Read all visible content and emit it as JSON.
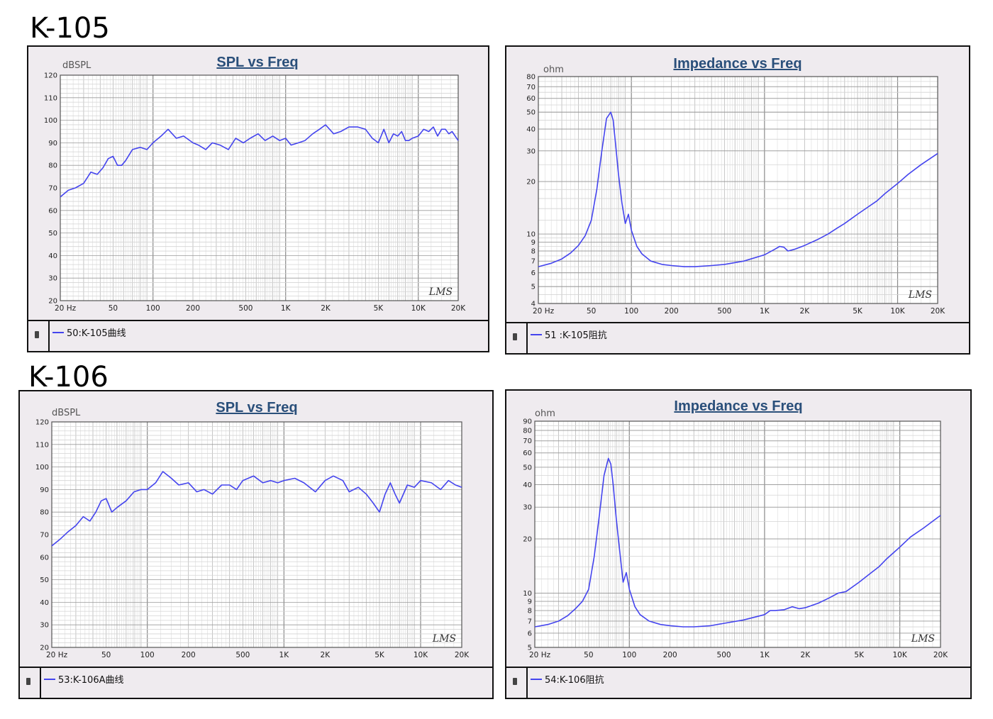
{
  "titles": [
    "K-105",
    "K-106"
  ],
  "colors": {
    "curve": "#4444ee",
    "grid": "#9a9a9a",
    "title": "#2a4f7a",
    "axis_label": "#555555",
    "tick_label": "#222222"
  },
  "chart_data": [
    {
      "type": "line",
      "title": "SPL vs Freq",
      "ylabel": "dBSPL",
      "x_scale": "log",
      "xlim": [
        20,
        20000
      ],
      "ylim": [
        20,
        120
      ],
      "y_scale": "linear",
      "x_ticks": [
        20,
        50,
        100,
        200,
        500,
        1000,
        2000,
        5000,
        10000,
        20000
      ],
      "x_tick_labels": [
        "20 Hz",
        "50",
        "100",
        "200",
        "500",
        "1K",
        "2K",
        "5K",
        "10K",
        "20K"
      ],
      "y_ticks": [
        20,
        30,
        40,
        50,
        60,
        70,
        80,
        90,
        100,
        110,
        120
      ],
      "y_tick_labels": [
        "20",
        "30",
        "40",
        "50",
        "60",
        "70",
        "80",
        "90",
        "100",
        "110",
        "120"
      ],
      "watermark": "LMS",
      "legend": "50:K-105曲线",
      "series": [
        {
          "x": [
            20,
            23,
            26,
            30,
            34,
            38,
            42,
            46,
            50,
            54,
            58,
            62,
            70,
            80,
            90,
            100,
            115,
            130,
            150,
            170,
            200,
            220,
            250,
            280,
            320,
            370,
            420,
            480,
            540,
            620,
            700,
            800,
            900,
            1000,
            1100,
            1250,
            1400,
            1600,
            1800,
            2000,
            2300,
            2600,
            3000,
            3500,
            4000,
            4500,
            5000,
            5500,
            6000,
            6500,
            7000,
            7500,
            8000,
            8500,
            9000,
            10000,
            11000,
            12000,
            13000,
            14000,
            15000,
            16000,
            17000,
            18000,
            20000
          ],
          "values": [
            66,
            69,
            70,
            72,
            77,
            76,
            79,
            83,
            84,
            80,
            80,
            82,
            87,
            88,
            87,
            90,
            93,
            96,
            92,
            93,
            90,
            89,
            87,
            90,
            89,
            87,
            92,
            90,
            92,
            94,
            91,
            93,
            91,
            92,
            89,
            90,
            91,
            94,
            96,
            98,
            94,
            95,
            97,
            97,
            96,
            92,
            90,
            96,
            90,
            94,
            93,
            95,
            91,
            91,
            92,
            93,
            96,
            95,
            97,
            93,
            96,
            96,
            94,
            95,
            91
          ]
        }
      ]
    },
    {
      "type": "line",
      "title": "Impedance vs Freq",
      "ylabel": "ohm",
      "x_scale": "log",
      "y_scale": "log",
      "xlim": [
        20,
        20000
      ],
      "ylim": [
        4,
        80
      ],
      "x_ticks": [
        20,
        50,
        100,
        200,
        500,
        1000,
        2000,
        5000,
        10000,
        20000
      ],
      "x_tick_labels": [
        "20 Hz",
        "50",
        "100",
        "200",
        "500",
        "1K",
        "2K",
        "5K",
        "10K",
        "20K"
      ],
      "y_ticks": [
        4,
        5,
        6,
        7,
        8,
        9,
        10,
        20,
        30,
        40,
        50,
        60,
        70,
        80
      ],
      "y_tick_labels": [
        "4",
        "5",
        "6",
        "7",
        "8",
        "9",
        "10",
        "20",
        "30",
        "40",
        "50",
        "60",
        "70",
        "80"
      ],
      "watermark": "LMS",
      "legend": "51 :K-105阻抗",
      "series": [
        {
          "x": [
            20,
            25,
            30,
            35,
            40,
            45,
            50,
            55,
            60,
            65,
            70,
            73,
            76,
            80,
            85,
            90,
            95,
            100,
            110,
            120,
            140,
            170,
            200,
            250,
            300,
            400,
            500,
            700,
            1000,
            1200,
            1300,
            1400,
            1500,
            1700,
            2000,
            2500,
            3000,
            3500,
            4000,
            5000,
            6000,
            7000,
            8000,
            10000,
            12000,
            15000,
            20000
          ],
          "values": [
            6.5,
            6.8,
            7.2,
            7.8,
            8.6,
            9.8,
            12,
            18,
            30,
            46,
            50,
            45,
            33,
            22,
            15,
            11.5,
            13,
            10.5,
            8.5,
            7.7,
            7.0,
            6.7,
            6.6,
            6.5,
            6.5,
            6.6,
            6.7,
            7.0,
            7.6,
            8.2,
            8.5,
            8.4,
            8.0,
            8.2,
            8.6,
            9.3,
            10.0,
            10.8,
            11.5,
            13.0,
            14.3,
            15.5,
            17.0,
            19.5,
            22,
            25,
            29
          ]
        }
      ]
    },
    {
      "type": "line",
      "title": "SPL vs Freq",
      "ylabel": "dBSPL",
      "x_scale": "log",
      "xlim": [
        20,
        20000
      ],
      "ylim": [
        20,
        120
      ],
      "y_scale": "linear",
      "x_ticks": [
        20,
        50,
        100,
        200,
        500,
        1000,
        2000,
        5000,
        10000,
        20000
      ],
      "x_tick_labels": [
        "20 Hz",
        "50",
        "100",
        "200",
        "500",
        "1K",
        "2K",
        "5K",
        "10K",
        "20K"
      ],
      "y_ticks": [
        20,
        30,
        40,
        50,
        60,
        70,
        80,
        90,
        100,
        110,
        120
      ],
      "y_tick_labels": [
        "20",
        "30",
        "40",
        "50",
        "60",
        "70",
        "80",
        "90",
        "100",
        "110",
        "120"
      ],
      "watermark": "LMS",
      "legend": "53:K-106A曲线",
      "series": [
        {
          "x": [
            20,
            23,
            26,
            30,
            34,
            38,
            42,
            46,
            50,
            55,
            60,
            70,
            80,
            90,
            100,
            115,
            130,
            150,
            170,
            200,
            230,
            260,
            300,
            350,
            400,
            450,
            500,
            600,
            700,
            800,
            900,
            1000,
            1200,
            1400,
            1700,
            2000,
            2300,
            2700,
            3000,
            3500,
            4000,
            4500,
            5000,
            5500,
            6000,
            6500,
            7000,
            8000,
            9000,
            10000,
            12000,
            14000,
            16000,
            18000,
            20000
          ],
          "values": [
            65,
            68,
            71,
            74,
            78,
            76,
            80,
            85,
            86,
            80,
            82,
            85,
            89,
            90,
            90,
            93,
            98,
            95,
            92,
            93,
            89,
            90,
            88,
            92,
            92,
            90,
            94,
            96,
            93,
            94,
            93,
            94,
            95,
            93,
            89,
            94,
            96,
            94,
            89,
            91,
            88,
            84,
            80,
            88,
            93,
            88,
            84,
            92,
            91,
            94,
            93,
            90,
            94,
            92,
            91
          ]
        }
      ]
    },
    {
      "type": "line",
      "title": "Impedance vs Freq",
      "ylabel": "ohm",
      "x_scale": "log",
      "y_scale": "log",
      "xlim": [
        20,
        20000
      ],
      "ylim": [
        5,
        90
      ],
      "x_ticks": [
        20,
        50,
        100,
        200,
        500,
        1000,
        2000,
        5000,
        10000,
        20000
      ],
      "x_tick_labels": [
        "20 Hz",
        "50",
        "100",
        "200",
        "500",
        "1K",
        "2K",
        "5K",
        "10K",
        "20K"
      ],
      "y_ticks": [
        5,
        6,
        7,
        8,
        9,
        10,
        20,
        30,
        40,
        50,
        60,
        70,
        80,
        90
      ],
      "y_tick_labels": [
        "5",
        "6",
        "7",
        "8",
        "9",
        "10",
        "20",
        "30",
        "40",
        "50",
        "60",
        "70",
        "80",
        "90"
      ],
      "watermark": "LMS",
      "legend": "54:K-106阻抗",
      "series": [
        {
          "x": [
            20,
            25,
            30,
            35,
            40,
            45,
            50,
            55,
            60,
            65,
            70,
            73,
            76,
            80,
            85,
            90,
            95,
            100,
            110,
            120,
            140,
            170,
            200,
            250,
            300,
            400,
            500,
            700,
            1000,
            1100,
            1200,
            1400,
            1600,
            1800,
            2000,
            2500,
            3000,
            3500,
            4000,
            5000,
            6000,
            7000,
            8000,
            10000,
            12000,
            15000,
            20000
          ],
          "values": [
            6.5,
            6.7,
            7.0,
            7.5,
            8.2,
            9.0,
            10.5,
            16,
            27,
            45,
            56,
            52,
            40,
            26,
            17,
            11.5,
            13,
            10.5,
            8.4,
            7.6,
            7.0,
            6.7,
            6.6,
            6.5,
            6.5,
            6.6,
            6.8,
            7.1,
            7.6,
            8.0,
            8.0,
            8.1,
            8.4,
            8.2,
            8.3,
            8.8,
            9.4,
            10.0,
            10.2,
            11.5,
            12.8,
            14.0,
            15.5,
            18.0,
            20.5,
            23,
            27
          ]
        }
      ]
    }
  ]
}
